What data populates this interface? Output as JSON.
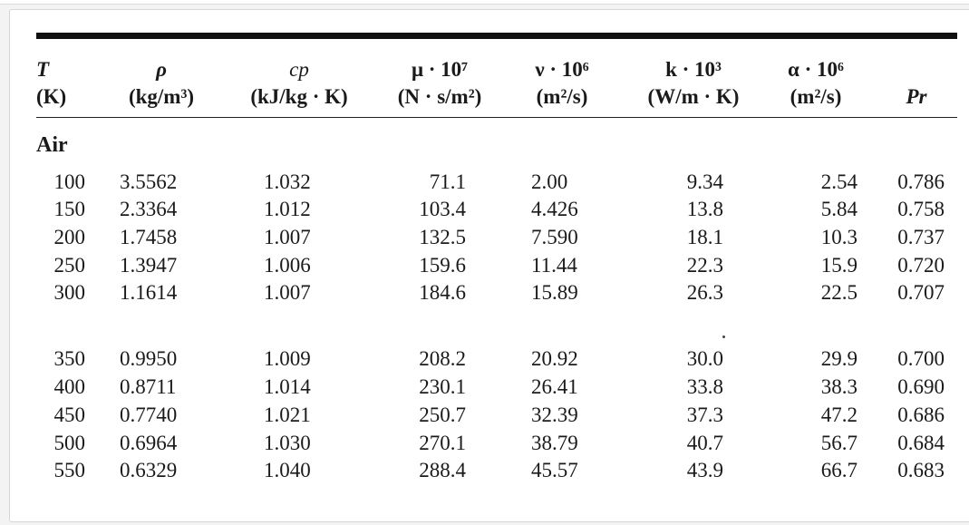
{
  "table": {
    "headers": [
      {
        "sym": "T",
        "unit": "(K)"
      },
      {
        "sym": "ρ",
        "unit": "(kg/m³)"
      },
      {
        "sym": "cp",
        "unit": "(kJ/kg · K)"
      },
      {
        "sym": "μ · 10⁷",
        "unit": "(N · s/m²)"
      },
      {
        "sym": "ν · 10⁶",
        "unit": "(m²/s)"
      },
      {
        "sym": "k · 10³",
        "unit": "(W/m · K)"
      },
      {
        "sym": "α · 10⁶",
        "unit": "(m²/s)"
      },
      {
        "sym": "Pr",
        "unit": ""
      }
    ],
    "section_label": "Air",
    "rows": [
      [
        "100",
        "3.5562",
        "1.032",
        "71.1",
        "2.00",
        "9.34",
        "2.54",
        "0.786"
      ],
      [
        "150",
        "2.3364",
        "1.012",
        "103.4",
        "4.426",
        "13.8",
        "5.84",
        "0.758"
      ],
      [
        "200",
        "1.7458",
        "1.007",
        "132.5",
        "7.590",
        "18.1",
        "10.3",
        "0.737"
      ],
      [
        "250",
        "1.3947",
        "1.006",
        "159.6",
        "11.44",
        "22.3",
        "15.9",
        "0.720"
      ],
      [
        "300",
        "1.1614",
        "1.007",
        "184.6",
        "15.89",
        "26.3",
        "22.5",
        "0.707"
      ],
      [
        "350",
        "0.9950",
        "1.009",
        "208.2",
        "20.92",
        "30.0",
        "29.9",
        "0.700"
      ],
      [
        "400",
        "0.8711",
        "1.014",
        "230.1",
        "26.41",
        "33.8",
        "38.3",
        "0.690"
      ],
      [
        "450",
        "0.7740",
        "1.021",
        "250.7",
        "32.39",
        "37.3",
        "47.2",
        "0.686"
      ],
      [
        "500",
        "0.6964",
        "1.030",
        "270.1",
        "38.79",
        "40.7",
        "56.7",
        "0.684"
      ],
      [
        "550",
        "0.6329",
        "1.040",
        "288.4",
        "45.57",
        "43.9",
        "66.7",
        "0.683"
      ]
    ]
  }
}
